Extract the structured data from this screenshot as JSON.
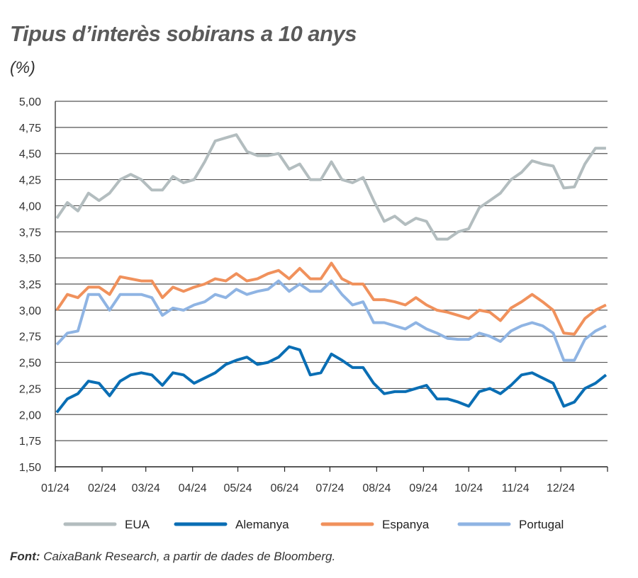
{
  "chart_data": {
    "type": "line",
    "title": "Tipus d’interès sobirans a 10 anys",
    "subtitle": "(%)",
    "ylim": [
      1.5,
      5.0
    ],
    "yticks": [
      "5,00",
      "4,75",
      "4,50",
      "4,25",
      "4,00",
      "3,75",
      "3,50",
      "3,25",
      "3,00",
      "2,75",
      "2,50",
      "2,25",
      "2,00",
      "1,75",
      "1,50"
    ],
    "xticks": [
      "01/24",
      "02/24",
      "03/24",
      "04/24",
      "05/24",
      "06/24",
      "07/24",
      "08/24",
      "09/24",
      "10/24",
      "11/24",
      "12/24"
    ],
    "grid": true,
    "legend_position": "bottom",
    "x": [
      "2024-01-02",
      "2024-01-09",
      "2024-01-16",
      "2024-01-23",
      "2024-01-30",
      "2024-02-06",
      "2024-02-13",
      "2024-02-20",
      "2024-02-27",
      "2024-03-05",
      "2024-03-12",
      "2024-03-19",
      "2024-03-26",
      "2024-04-02",
      "2024-04-09",
      "2024-04-16",
      "2024-04-23",
      "2024-04-30",
      "2024-05-07",
      "2024-05-14",
      "2024-05-21",
      "2024-05-28",
      "2024-06-04",
      "2024-06-11",
      "2024-06-18",
      "2024-06-25",
      "2024-07-02",
      "2024-07-09",
      "2024-07-16",
      "2024-07-23",
      "2024-07-30",
      "2024-08-06",
      "2024-08-13",
      "2024-08-20",
      "2024-08-27",
      "2024-09-03",
      "2024-09-10",
      "2024-09-17",
      "2024-09-24",
      "2024-10-01",
      "2024-10-08",
      "2024-10-15",
      "2024-10-22",
      "2024-10-29",
      "2024-11-05",
      "2024-11-12",
      "2024-11-19",
      "2024-11-26",
      "2024-12-03",
      "2024-12-10",
      "2024-12-17",
      "2024-12-24",
      "2024-12-31"
    ],
    "series": [
      {
        "name": "EUA",
        "color": "#b3bdbf",
        "values": [
          3.88,
          4.03,
          3.95,
          4.12,
          4.05,
          4.12,
          4.25,
          4.3,
          4.25,
          4.15,
          4.15,
          4.28,
          4.22,
          4.25,
          4.42,
          4.62,
          4.65,
          4.68,
          4.52,
          4.48,
          4.48,
          4.5,
          4.35,
          4.4,
          4.25,
          4.25,
          4.42,
          4.25,
          4.22,
          4.27,
          4.05,
          3.85,
          3.9,
          3.82,
          3.88,
          3.85,
          3.68,
          3.68,
          3.75,
          3.78,
          3.98,
          4.05,
          4.12,
          4.25,
          4.32,
          4.43,
          4.4,
          4.38,
          4.17,
          4.18,
          4.4,
          4.55,
          4.55
        ]
      },
      {
        "name": "Alemanya",
        "color": "#0a6eb4",
        "values": [
          2.02,
          2.15,
          2.2,
          2.32,
          2.3,
          2.18,
          2.32,
          2.38,
          2.4,
          2.38,
          2.28,
          2.4,
          2.38,
          2.3,
          2.35,
          2.4,
          2.48,
          2.52,
          2.55,
          2.48,
          2.5,
          2.55,
          2.65,
          2.62,
          2.38,
          2.4,
          2.58,
          2.52,
          2.45,
          2.45,
          2.3,
          2.2,
          2.22,
          2.22,
          2.25,
          2.28,
          2.15,
          2.15,
          2.12,
          2.08,
          2.22,
          2.25,
          2.2,
          2.28,
          2.38,
          2.4,
          2.35,
          2.3,
          2.08,
          2.12,
          2.25,
          2.3,
          2.38
        ]
      },
      {
        "name": "Espanya",
        "color": "#f0915c",
        "values": [
          3.0,
          3.15,
          3.12,
          3.22,
          3.22,
          3.15,
          3.32,
          3.3,
          3.28,
          3.28,
          3.12,
          3.22,
          3.18,
          3.22,
          3.25,
          3.3,
          3.28,
          3.35,
          3.28,
          3.3,
          3.35,
          3.38,
          3.3,
          3.4,
          3.3,
          3.3,
          3.45,
          3.3,
          3.25,
          3.25,
          3.1,
          3.1,
          3.08,
          3.05,
          3.12,
          3.05,
          3.0,
          2.98,
          2.95,
          2.92,
          3.0,
          2.98,
          2.9,
          3.02,
          3.08,
          3.15,
          3.08,
          3.0,
          2.78,
          2.77,
          2.92,
          3.0,
          3.05
        ]
      },
      {
        "name": "Portugal",
        "color": "#8fb4e3",
        "values": [
          2.67,
          2.78,
          2.8,
          3.15,
          3.15,
          3.0,
          3.15,
          3.15,
          3.15,
          3.12,
          2.95,
          3.02,
          3.0,
          3.05,
          3.08,
          3.15,
          3.12,
          3.2,
          3.15,
          3.18,
          3.2,
          3.28,
          3.18,
          3.25,
          3.18,
          3.18,
          3.28,
          3.15,
          3.05,
          3.08,
          2.88,
          2.88,
          2.85,
          2.82,
          2.88,
          2.82,
          2.78,
          2.73,
          2.72,
          2.72,
          2.78,
          2.75,
          2.7,
          2.8,
          2.85,
          2.88,
          2.85,
          2.78,
          2.52,
          2.52,
          2.72,
          2.8,
          2.85
        ]
      }
    ]
  },
  "footer": {
    "label": "Font:",
    "text": " CaixaBank Research, a partir de dades de Bloomberg."
  }
}
